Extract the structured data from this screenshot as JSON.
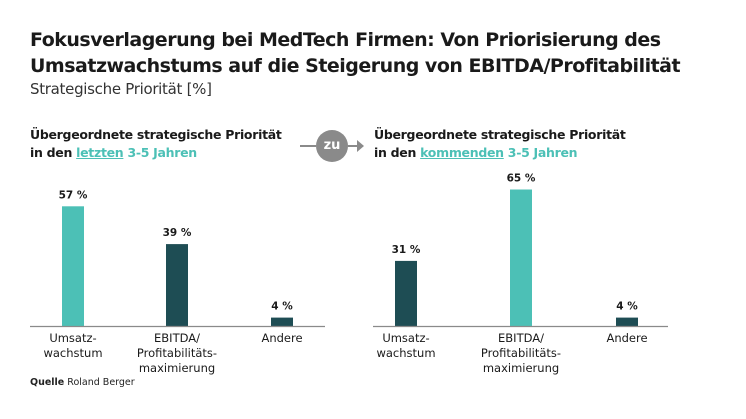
{
  "title_line1": "Fokusverlagerung bei MedTech Firmen: Von Priorisierung des",
  "title_line2": "Umsatzwachstums auf die Steigerung von EBITDA/Profitabilität",
  "subtitle": "Strategische Priorität [%]",
  "connector_label": "zu",
  "left_panel": {
    "heading_line1": "Übergeordnete strategische Priorität",
    "heading_prefix": "in den ",
    "heading_highlight": "letzten",
    "heading_suffix": " 3-5 Jahren"
  },
  "right_panel": {
    "heading_line1": "Übergeordnete strategische Priorität",
    "heading_prefix": "in den ",
    "heading_highlight": "kommenden",
    "heading_suffix": " 3-5 Jahren"
  },
  "source_label": "Quelle",
  "source_text": "Roland Berger",
  "colors": {
    "teal": "#4cc0b6",
    "dark_teal": "#1e4d54",
    "axis": "#8a8a8a"
  },
  "chart_data": [
    {
      "type": "bar",
      "title": "Übergeordnete strategische Priorität in den letzten 3-5 Jahren",
      "xlabel": "",
      "ylabel": "Strategische Priorität [%]",
      "ylim": [
        0,
        70
      ],
      "grid": false,
      "categories": [
        [
          "Umsatz-",
          "wachstum"
        ],
        [
          "EBITDA/",
          "Profitabilitäts-",
          "maximierung"
        ],
        [
          "Andere"
        ]
      ],
      "values": [
        57,
        39,
        4
      ],
      "labels": [
        "57 %",
        "39 %",
        "4 %"
      ],
      "bar_colors": [
        "teal",
        "dark_teal",
        "dark_teal"
      ]
    },
    {
      "type": "bar",
      "title": "Übergeordnete strategische Priorität in den kommenden 3-5 Jahren",
      "xlabel": "",
      "ylabel": "Strategische Priorität [%]",
      "ylim": [
        0,
        70
      ],
      "grid": false,
      "categories": [
        [
          "Umsatz-",
          "wachstum"
        ],
        [
          "EBITDA/",
          "Profitabilitäts-",
          "maximierung"
        ],
        [
          "Andere"
        ]
      ],
      "values": [
        31,
        65,
        4
      ],
      "labels": [
        "31 %",
        "65 %",
        "4 %"
      ],
      "bar_colors": [
        "dark_teal",
        "teal",
        "dark_teal"
      ]
    }
  ]
}
